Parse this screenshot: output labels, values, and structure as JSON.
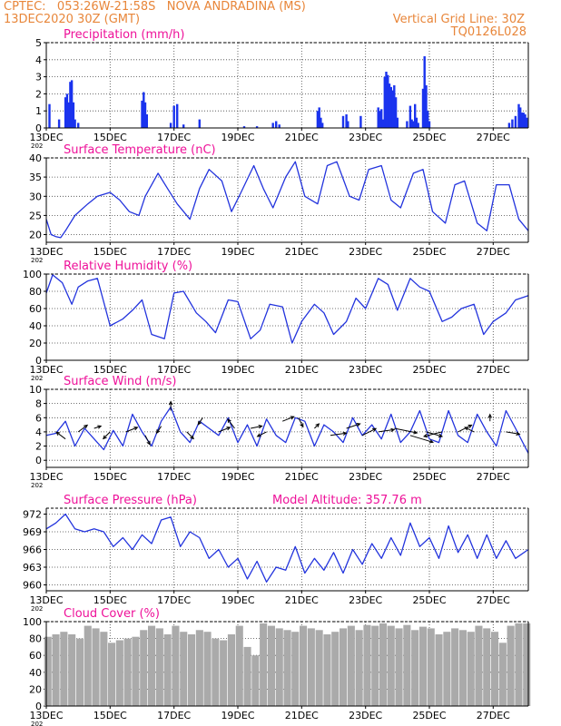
{
  "header": {
    "line1": "CPTEC:   053:26W-21:58S   NOVA ANDRADINA (MS)",
    "line2": "13DEC2020 30Z (GMT)",
    "grid_note": "Vertical Grid Line: 30Z",
    "model": "TQ0126L028"
  },
  "x_axis": {
    "tick_labels": [
      "13DEC",
      "15DEC",
      "17DEC",
      "19DEC",
      "21DEC",
      "23DEC",
      "25DEC",
      "27DEC"
    ],
    "year_fragment": "202",
    "start_day": 13,
    "end_day": 28.1
  },
  "colors": {
    "line": "#2233dd",
    "bar": "#1a33ee",
    "cloud": "#aaaaaa",
    "title": "#ee1199",
    "header": "#e8863a"
  },
  "chart_data": [
    {
      "type": "bar",
      "title": "Precipitation (mm/h)",
      "ylim": [
        0,
        5
      ],
      "yticks": [
        0,
        1,
        2,
        3,
        4,
        5
      ],
      "x": [
        13.1,
        13.4,
        13.6,
        13.65,
        13.7,
        13.75,
        13.8,
        13.85,
        13.9,
        14.0,
        16.0,
        16.05,
        16.1,
        16.15,
        16.9,
        17.0,
        17.1,
        17.3,
        17.8,
        19.2,
        19.6,
        20.1,
        20.2,
        20.3,
        21.5,
        21.55,
        21.6,
        21.65,
        22.3,
        22.4,
        22.45,
        22.85,
        23.4,
        23.45,
        23.5,
        23.55,
        23.6,
        23.65,
        23.7,
        23.75,
        23.8,
        23.85,
        23.9,
        23.95,
        24.0,
        24.3,
        24.4,
        24.45,
        24.5,
        24.55,
        24.6,
        24.65,
        24.8,
        24.85,
        24.9,
        24.95,
        25.0,
        27.5,
        27.6,
        27.7,
        27.8,
        27.85,
        27.9,
        27.95,
        28.0,
        28.05
      ],
      "values": [
        1.4,
        0.5,
        1.8,
        2.0,
        1.5,
        2.7,
        2.8,
        1.5,
        0.5,
        0.3,
        1.6,
        2.1,
        1.5,
        0.8,
        0.3,
        1.3,
        1.4,
        0.2,
        0.5,
        0.1,
        0.1,
        0.3,
        0.4,
        0.2,
        1.0,
        1.2,
        0.6,
        0.3,
        0.7,
        0.8,
        0.4,
        0.7,
        1.2,
        1.0,
        1.1,
        0.5,
        3.0,
        3.3,
        3.1,
        2.6,
        2.4,
        2.2,
        2.5,
        1.8,
        0.6,
        0.4,
        1.3,
        0.5,
        0.4,
        1.4,
        0.6,
        0.3,
        2.3,
        4.2,
        2.5,
        1.0,
        0.4,
        0.3,
        0.5,
        0.7,
        1.4,
        1.2,
        0.9,
        0.9,
        0.8,
        0.6
      ]
    },
    {
      "type": "line",
      "title": "Surface Temperature (nC)",
      "ylim": [
        18,
        40
      ],
      "yticks": [
        20,
        25,
        30,
        35,
        40
      ],
      "x": [
        13.0,
        13.15,
        13.3,
        13.45,
        13.6,
        13.9,
        14.3,
        14.6,
        15.0,
        15.3,
        15.6,
        15.9,
        16.1,
        16.5,
        16.8,
        17.1,
        17.5,
        17.8,
        18.1,
        18.5,
        18.8,
        19.1,
        19.5,
        19.8,
        20.1,
        20.5,
        20.8,
        21.1,
        21.5,
        21.8,
        22.1,
        22.5,
        22.8,
        23.1,
        23.5,
        23.8,
        24.1,
        24.5,
        24.8,
        25.1,
        25.5,
        25.8,
        26.1,
        26.5,
        26.8,
        27.1,
        27.5,
        27.8,
        28.1
      ],
      "values": [
        24,
        20,
        19.5,
        19.2,
        21,
        25,
        28,
        30,
        31,
        29,
        26,
        25,
        30,
        36,
        32,
        28,
        24,
        32,
        37,
        34,
        26,
        31,
        38,
        32,
        27,
        35,
        39,
        30,
        28,
        38,
        39,
        30,
        29,
        37,
        38,
        29,
        27,
        36,
        37,
        26,
        23,
        33,
        34,
        23,
        21,
        33,
        33,
        24,
        21
      ]
    },
    {
      "type": "line",
      "title": "Relative Humidity (%)",
      "ylim": [
        0,
        100
      ],
      "yticks": [
        0,
        20,
        40,
        60,
        80,
        100
      ],
      "x": [
        13.0,
        13.2,
        13.5,
        13.8,
        14.0,
        14.3,
        14.6,
        15.0,
        15.4,
        15.7,
        16.0,
        16.3,
        16.7,
        17.0,
        17.3,
        17.7,
        18.0,
        18.3,
        18.7,
        19.0,
        19.4,
        19.7,
        20.0,
        20.4,
        20.7,
        21.0,
        21.4,
        21.7,
        22.0,
        22.4,
        22.7,
        23.0,
        23.4,
        23.7,
        24.0,
        24.4,
        24.7,
        25.0,
        25.4,
        25.7,
        26.0,
        26.4,
        26.7,
        27.0,
        27.4,
        27.7,
        28.1
      ],
      "values": [
        78,
        99,
        90,
        65,
        85,
        92,
        95,
        40,
        48,
        58,
        70,
        30,
        25,
        78,
        80,
        55,
        45,
        32,
        70,
        68,
        25,
        35,
        65,
        62,
        20,
        45,
        65,
        55,
        30,
        45,
        72,
        60,
        95,
        88,
        58,
        95,
        85,
        80,
        45,
        50,
        60,
        65,
        30,
        45,
        55,
        70,
        75
      ]
    },
    {
      "type": "line",
      "title": "Surface Wind (m/s)",
      "ylim": [
        -1,
        10
      ],
      "yticks": [
        0,
        2,
        4,
        6,
        8,
        10
      ],
      "x": [
        13.0,
        13.3,
        13.6,
        13.9,
        14.2,
        14.5,
        14.8,
        15.1,
        15.4,
        15.7,
        16.0,
        16.3,
        16.6,
        16.9,
        17.2,
        17.5,
        17.8,
        18.1,
        18.4,
        18.7,
        19.0,
        19.3,
        19.6,
        19.9,
        20.2,
        20.5,
        20.8,
        21.1,
        21.4,
        21.7,
        22.0,
        22.3,
        22.6,
        22.9,
        23.2,
        23.5,
        23.8,
        24.1,
        24.4,
        24.7,
        25.0,
        25.3,
        25.6,
        25.9,
        26.2,
        26.5,
        26.8,
        27.1,
        27.4,
        27.7,
        28.1
      ],
      "values": [
        3.5,
        3.8,
        5.5,
        2.0,
        4.5,
        3.0,
        1.5,
        4.2,
        2.0,
        6.5,
        4.0,
        2.0,
        5.5,
        7.5,
        4.0,
        2.5,
        5.5,
        4.5,
        3.5,
        6.0,
        2.5,
        5.0,
        2.0,
        5.8,
        3.5,
        2.5,
        6.0,
        5.5,
        2.0,
        5.0,
        4.0,
        2.5,
        6.0,
        3.5,
        5.0,
        3.0,
        6.5,
        2.5,
        4.0,
        7.0,
        3.0,
        2.5,
        7.0,
        3.5,
        2.5,
        6.5,
        4.0,
        2.0,
        7.0,
        4.5,
        1.0
      ],
      "arrows": {
        "x": [
          13.6,
          14.0,
          14.5,
          15.0,
          15.5,
          16.1,
          16.6,
          16.9,
          17.4,
          17.9,
          18.4,
          18.9,
          19.4,
          19.9,
          20.4,
          20.9,
          21.4,
          21.9,
          22.4,
          22.9,
          23.4,
          23.9,
          24.4,
          24.9,
          25.4,
          25.9,
          26.4,
          26.9,
          27.4
        ],
        "y": [
          3.0,
          4.0,
          4.5,
          4.0,
          4.0,
          3.5,
          4.8,
          7.0,
          4.0,
          6.0,
          4.0,
          4.5,
          4.5,
          4.0,
          5.5,
          6.0,
          4.5,
          3.5,
          4.5,
          3.5,
          4.0,
          4.5,
          3.5,
          4.0,
          4.0,
          4.0,
          4.0,
          5.5,
          4.0
        ],
        "u": [
          -2.0,
          2.0,
          1.5,
          -1.5,
          2.5,
          1.0,
          -1.0,
          0.0,
          1.5,
          -1.0,
          2.5,
          -1.5,
          2.5,
          -2.0,
          2.5,
          1.0,
          1.0,
          3.5,
          3.0,
          3.0,
          3.5,
          5.0,
          5.0,
          3.5,
          -4.0,
          3.0,
          -2.0,
          0.0,
          3.0
        ],
        "v": [
          1.5,
          1.5,
          0.5,
          -1.5,
          1.0,
          -2.0,
          -1.5,
          2.0,
          -1.5,
          -1.5,
          1.0,
          2.0,
          0.5,
          -1.0,
          1.0,
          -2.0,
          1.0,
          0.5,
          1.0,
          1.5,
          0.5,
          -1.0,
          -1.5,
          -1.0,
          -1.0,
          1.5,
          1.0,
          1.5,
          -0.5
        ]
      }
    },
    {
      "type": "line",
      "title": "Surface Pressure (hPa)",
      "subtitle": "Model Altitude: 357.76  m",
      "ylim": [
        959,
        973
      ],
      "yticks": [
        960,
        963,
        966,
        969,
        972
      ],
      "x": [
        13.0,
        13.3,
        13.6,
        13.9,
        14.2,
        14.5,
        14.8,
        15.1,
        15.4,
        15.7,
        16.0,
        16.3,
        16.6,
        16.9,
        17.2,
        17.5,
        17.8,
        18.1,
        18.4,
        18.7,
        19.0,
        19.3,
        19.6,
        19.9,
        20.2,
        20.5,
        20.8,
        21.1,
        21.4,
        21.7,
        22.0,
        22.3,
        22.6,
        22.9,
        23.2,
        23.5,
        23.8,
        24.1,
        24.4,
        24.7,
        25.0,
        25.3,
        25.6,
        25.9,
        26.2,
        26.5,
        26.8,
        27.1,
        27.4,
        27.7,
        28.1
      ],
      "values": [
        969.5,
        970.5,
        972.0,
        969.5,
        969.0,
        969.5,
        969.0,
        966.5,
        968.0,
        966.0,
        968.5,
        967.0,
        971.0,
        971.5,
        966.5,
        969.0,
        968.0,
        964.5,
        966.0,
        963.0,
        964.5,
        961.0,
        964.0,
        960.5,
        963.0,
        962.5,
        966.5,
        962.0,
        964.5,
        962.5,
        965.5,
        962.0,
        966.0,
        963.5,
        967.0,
        964.5,
        968.0,
        965.0,
        970.5,
        966.5,
        968.0,
        964.5,
        970.0,
        965.5,
        968.5,
        964.5,
        968.5,
        964.5,
        967.5,
        964.5,
        966.0
      ]
    },
    {
      "type": "bar",
      "title": "Cloud Cover (%)",
      "ylim": [
        0,
        100
      ],
      "yticks": [
        0,
        20,
        40,
        60,
        80,
        100
      ],
      "x": [
        13.05,
        13.3,
        13.55,
        13.8,
        14.05,
        14.3,
        14.55,
        14.8,
        15.05,
        15.3,
        15.55,
        15.8,
        16.05,
        16.3,
        16.55,
        16.8,
        17.05,
        17.3,
        17.55,
        17.8,
        18.05,
        18.3,
        18.55,
        18.8,
        19.05,
        19.3,
        19.55,
        19.8,
        20.05,
        20.3,
        20.55,
        20.8,
        21.05,
        21.3,
        21.55,
        21.8,
        22.05,
        22.3,
        22.55,
        22.8,
        23.05,
        23.3,
        23.55,
        23.8,
        24.05,
        24.3,
        24.55,
        24.8,
        25.05,
        25.3,
        25.55,
        25.8,
        26.05,
        26.3,
        26.55,
        26.8,
        27.05,
        27.3,
        27.55,
        27.8,
        28.05
      ],
      "values": [
        82,
        85,
        88,
        85,
        80,
        95,
        92,
        88,
        75,
        78,
        80,
        82,
        90,
        95,
        92,
        85,
        95,
        88,
        85,
        90,
        88,
        80,
        78,
        85,
        95,
        70,
        60,
        98,
        95,
        92,
        90,
        88,
        95,
        92,
        90,
        85,
        88,
        92,
        95,
        90,
        96,
        95,
        98,
        95,
        92,
        96,
        90,
        94,
        92,
        85,
        88,
        92,
        90,
        88,
        95,
        92,
        88,
        75,
        95,
        98,
        98
      ]
    }
  ]
}
